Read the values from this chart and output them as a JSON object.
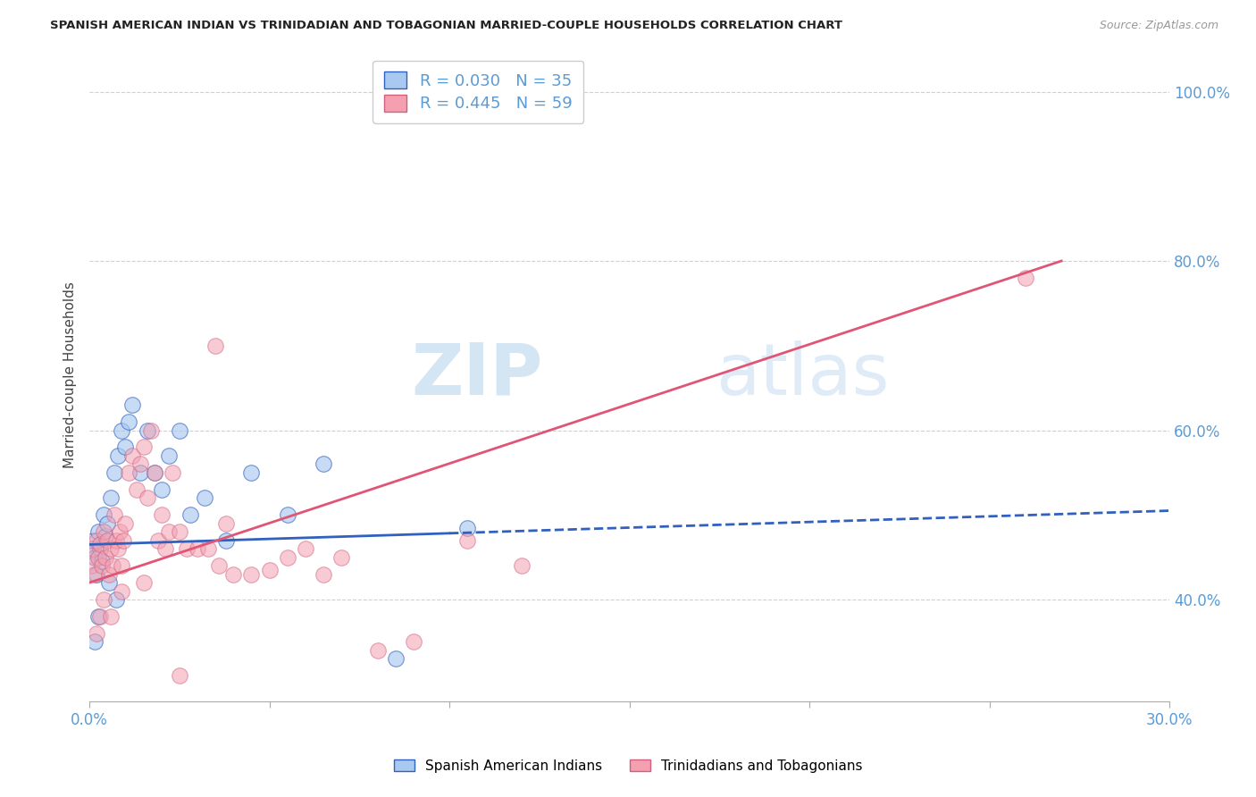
{
  "title": "SPANISH AMERICAN INDIAN VS TRINIDADIAN AND TOBAGONIAN MARRIED-COUPLE HOUSEHOLDS CORRELATION CHART",
  "source": "Source: ZipAtlas.com",
  "ylabel": "Married-couple Households",
  "color_blue": "#aac9f0",
  "color_pink": "#f4a0b0",
  "color_trend_blue": "#3060c0",
  "color_trend_pink": "#e05575",
  "color_axis_labels": "#5b9bd5",
  "watermark_zip": "ZIP",
  "watermark_atlas": "atlas",
  "xlim": [
    0.0,
    30.0
  ],
  "ylim": [
    28.0,
    105.0
  ],
  "yticks_right": [
    100.0,
    80.0,
    60.0,
    40.0
  ],
  "xticks": [
    0.0,
    5.0,
    10.0,
    15.0,
    20.0,
    25.0,
    30.0
  ],
  "blue_trend_x0": 0.0,
  "blue_trend_y0": 46.5,
  "blue_trend_x1": 30.0,
  "blue_trend_y1": 50.5,
  "blue_solid_end_x": 10.0,
  "pink_trend_x0": 0.0,
  "pink_trend_y0": 42.0,
  "pink_trend_x1": 27.0,
  "pink_trend_y1": 80.0,
  "legend_label1": "Spanish American Indians",
  "legend_label2": "Trinidadians and Tobagonians",
  "legend_r1": "R = 0.030",
  "legend_n1": "N = 35",
  "legend_r2": "R = 0.445",
  "legend_n2": "N = 59",
  "blue_scatter_x": [
    0.05,
    0.1,
    0.15,
    0.2,
    0.25,
    0.3,
    0.35,
    0.4,
    0.45,
    0.5,
    0.6,
    0.7,
    0.8,
    0.9,
    1.0,
    1.1,
    1.2,
    1.4,
    1.6,
    1.8,
    2.0,
    2.2,
    2.5,
    2.8,
    3.2,
    3.8,
    4.5,
    5.5,
    6.5,
    8.5,
    0.15,
    0.25,
    0.55,
    0.75,
    10.5
  ],
  "blue_scatter_y": [
    46.0,
    47.0,
    45.0,
    43.0,
    48.0,
    46.0,
    44.5,
    50.0,
    47.5,
    49.0,
    52.0,
    55.0,
    57.0,
    60.0,
    58.0,
    61.0,
    63.0,
    55.0,
    60.0,
    55.0,
    53.0,
    57.0,
    60.0,
    50.0,
    52.0,
    47.0,
    55.0,
    50.0,
    56.0,
    33.0,
    35.0,
    38.0,
    42.0,
    40.0,
    48.5
  ],
  "pink_scatter_x": [
    0.05,
    0.1,
    0.15,
    0.2,
    0.25,
    0.3,
    0.35,
    0.4,
    0.45,
    0.5,
    0.55,
    0.6,
    0.65,
    0.7,
    0.75,
    0.8,
    0.85,
    0.9,
    0.95,
    1.0,
    1.1,
    1.2,
    1.3,
    1.4,
    1.5,
    1.6,
    1.7,
    1.8,
    1.9,
    2.0,
    2.1,
    2.2,
    2.3,
    2.5,
    2.7,
    3.0,
    3.3,
    3.6,
    3.8,
    4.0,
    4.5,
    5.0,
    5.5,
    6.0,
    6.5,
    7.0,
    8.0,
    9.0,
    10.5,
    12.0,
    0.2,
    0.3,
    0.4,
    0.6,
    0.9,
    1.5,
    2.5,
    26.0,
    3.5
  ],
  "pink_scatter_y": [
    44.0,
    46.0,
    43.0,
    47.0,
    45.0,
    46.5,
    44.0,
    48.0,
    45.0,
    47.0,
    43.0,
    46.0,
    44.0,
    50.0,
    47.0,
    46.0,
    48.0,
    44.0,
    47.0,
    49.0,
    55.0,
    57.0,
    53.0,
    56.0,
    58.0,
    52.0,
    60.0,
    55.0,
    47.0,
    50.0,
    46.0,
    48.0,
    55.0,
    48.0,
    46.0,
    46.0,
    46.0,
    44.0,
    49.0,
    43.0,
    43.0,
    43.5,
    45.0,
    46.0,
    43.0,
    45.0,
    34.0,
    35.0,
    47.0,
    44.0,
    36.0,
    38.0,
    40.0,
    38.0,
    41.0,
    42.0,
    31.0,
    78.0,
    70.0
  ]
}
